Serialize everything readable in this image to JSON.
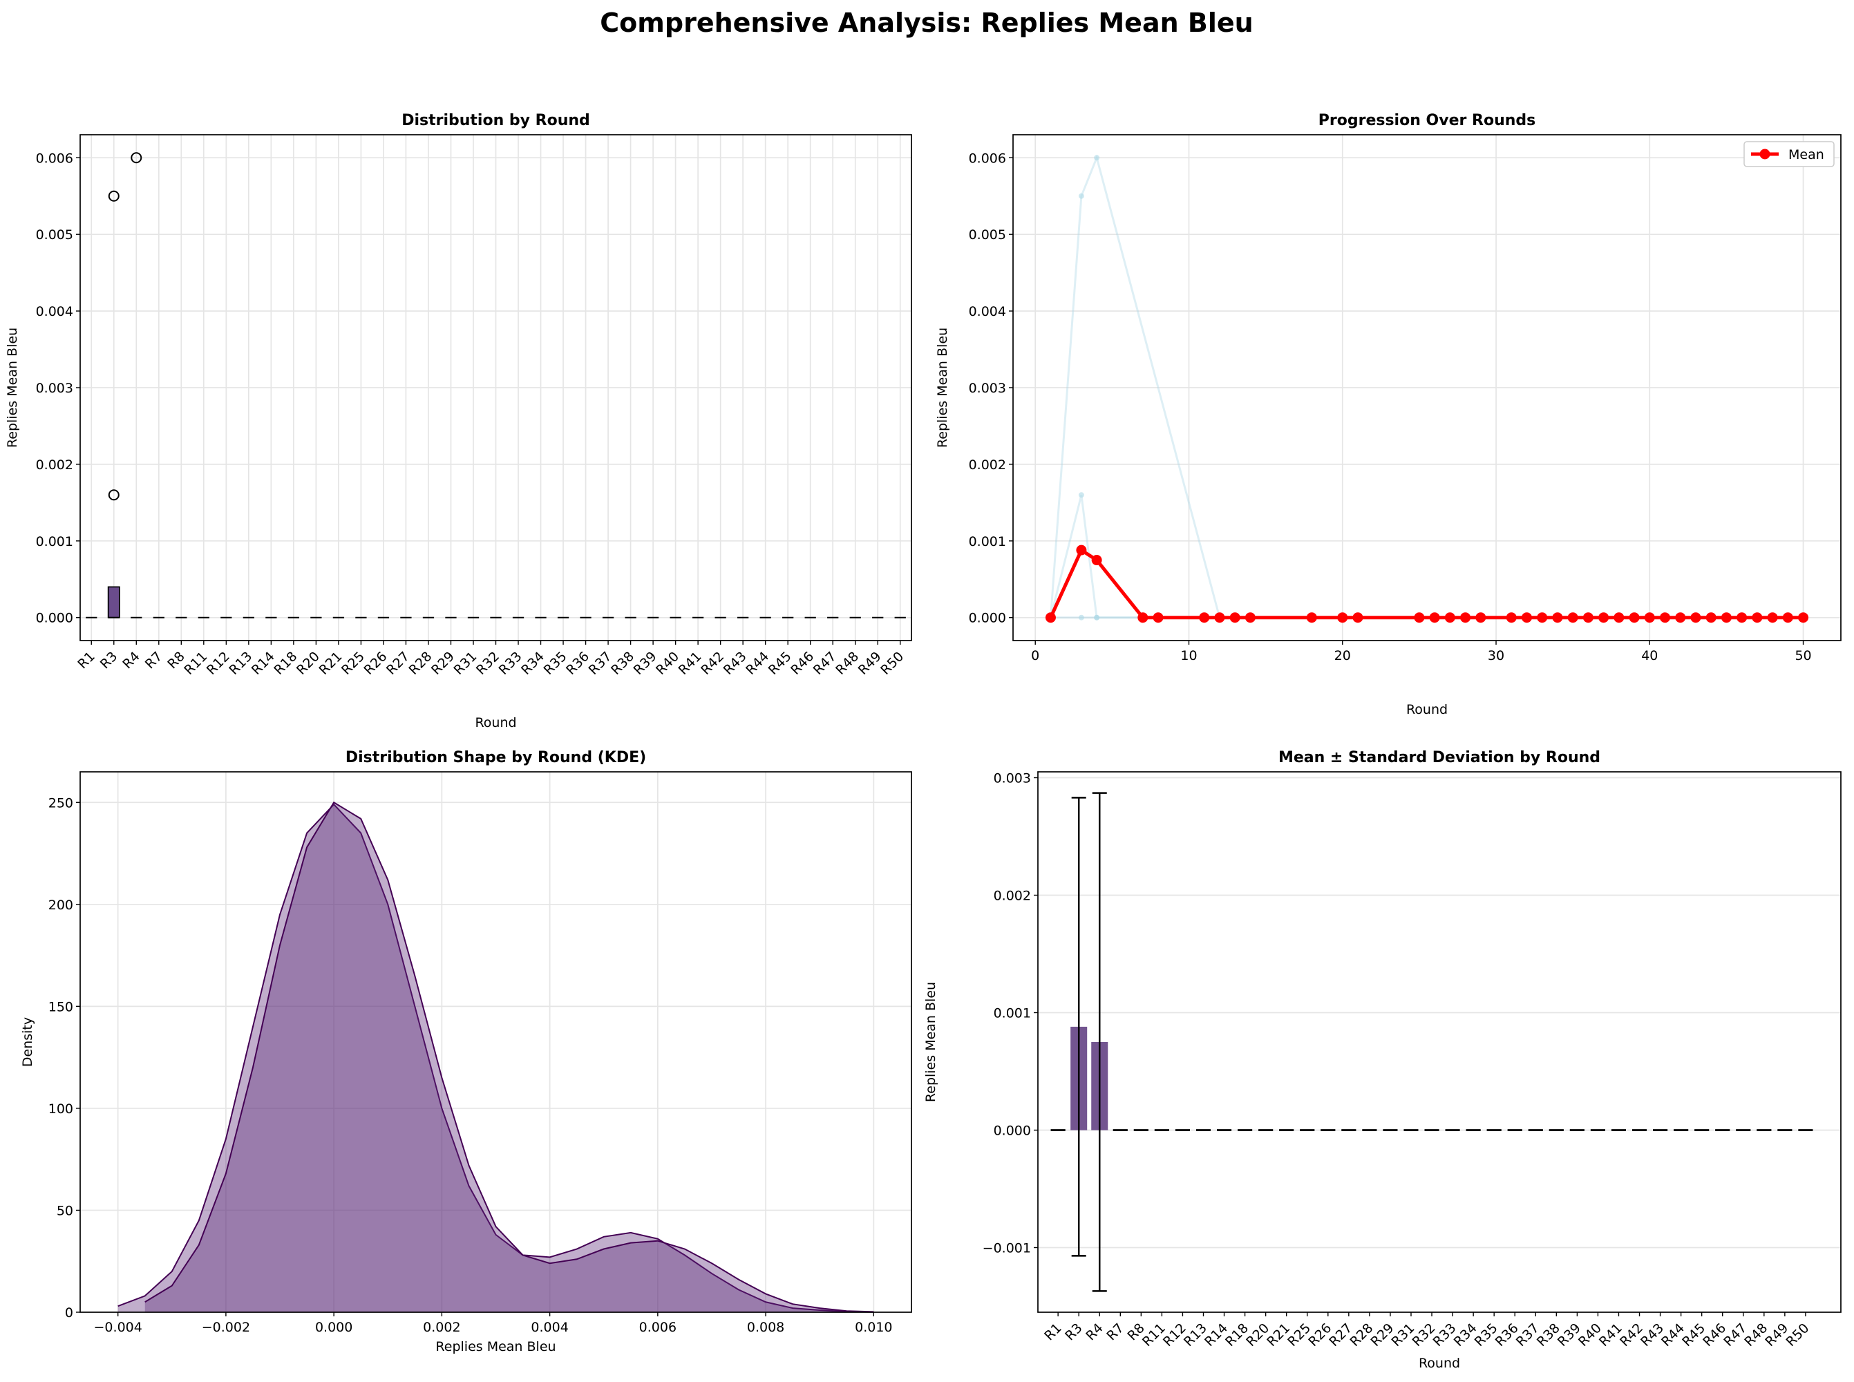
{
  "title": "Comprehensive Analysis: Replies Mean Bleu",
  "chart_data": [
    {
      "type": "box",
      "title": "Distribution by Round",
      "xlabel": "Round",
      "ylabel": "Replies Mean Bleu",
      "color": "#6a4c8c",
      "categories": [
        "R1",
        "R3",
        "R4",
        "R7",
        "R8",
        "R11",
        "R12",
        "R13",
        "R14",
        "R18",
        "R20",
        "R21",
        "R25",
        "R26",
        "R27",
        "R28",
        "R29",
        "R31",
        "R32",
        "R33",
        "R34",
        "R35",
        "R36",
        "R37",
        "R38",
        "R39",
        "R40",
        "R41",
        "R42",
        "R43",
        "R44",
        "R45",
        "R46",
        "R47",
        "R48",
        "R49",
        "R50"
      ],
      "q1": [
        0,
        0,
        0,
        0,
        0,
        0,
        0,
        0,
        0,
        0,
        0,
        0,
        0,
        0,
        0,
        0,
        0,
        0,
        0,
        0,
        0,
        0,
        0,
        0,
        0,
        0,
        0,
        0,
        0,
        0,
        0,
        0,
        0,
        0,
        0,
        0,
        0
      ],
      "median": [
        0,
        0,
        0,
        0,
        0,
        0,
        0,
        0,
        0,
        0,
        0,
        0,
        0,
        0,
        0,
        0,
        0,
        0,
        0,
        0,
        0,
        0,
        0,
        0,
        0,
        0,
        0,
        0,
        0,
        0,
        0,
        0,
        0,
        0,
        0,
        0,
        0
      ],
      "q3": [
        0,
        0.0004,
        0,
        0,
        0,
        0,
        0,
        0,
        0,
        0,
        0,
        0,
        0,
        0,
        0,
        0,
        0,
        0,
        0,
        0,
        0,
        0,
        0,
        0,
        0,
        0,
        0,
        0,
        0,
        0,
        0,
        0,
        0,
        0,
        0,
        0,
        0
      ],
      "outliers": [
        [],
        [
          0.0016,
          0.0055
        ],
        [
          0.006
        ],
        [],
        [],
        [],
        [],
        [],
        [],
        [],
        [],
        [],
        [],
        [],
        [],
        [],
        [],
        [],
        [],
        [],
        [],
        [],
        [],
        [],
        [],
        [],
        [],
        [],
        [],
        [],
        [],
        [],
        [],
        [],
        [],
        [],
        []
      ],
      "ylim": [
        -0.0003,
        0.0063
      ],
      "yticks": [
        {
          "value": 0,
          "label": "0.000"
        },
        {
          "value": 0.001,
          "label": "0.001"
        },
        {
          "value": 0.002,
          "label": "0.002"
        },
        {
          "value": 0.003,
          "label": "0.003"
        },
        {
          "value": 0.004,
          "label": "0.004"
        },
        {
          "value": 0.005,
          "label": "0.005"
        },
        {
          "value": 0.006,
          "label": "0.006"
        }
      ],
      "grid": true
    },
    {
      "type": "line",
      "title": "Progression Over Rounds",
      "xlabel": "Round",
      "ylabel": "Replies Mean Bleu",
      "x": [
        1,
        3,
        4,
        7,
        8,
        11,
        12,
        13,
        14,
        18,
        20,
        21,
        25,
        26,
        27,
        28,
        29,
        31,
        32,
        33,
        34,
        35,
        36,
        37,
        38,
        39,
        40,
        41,
        42,
        43,
        44,
        45,
        46,
        47,
        48,
        49,
        50
      ],
      "individual": [
        {
          "color": "#add8e6",
          "x": [
            1,
            3,
            4,
            12
          ],
          "values": [
            0,
            0.0055,
            0.006,
            0
          ]
        },
        {
          "color": "#add8e6",
          "x": [
            1,
            3,
            4,
            12
          ],
          "values": [
            0,
            0.0016,
            0,
            0
          ]
        },
        {
          "color": "#add8e6",
          "x": [
            1,
            3,
            4,
            12
          ],
          "values": [
            0,
            0,
            0,
            0
          ]
        }
      ],
      "series": [
        {
          "name": "Mean",
          "color": "#ff0000",
          "values": [
            0,
            0.00088,
            0.00075,
            0,
            0,
            0,
            0,
            0,
            0,
            0,
            0,
            0,
            0,
            0,
            0,
            0,
            0,
            0,
            0,
            0,
            0,
            0,
            0,
            0,
            0,
            0,
            0,
            0,
            0,
            0,
            0,
            0,
            0,
            0,
            0,
            0,
            0
          ]
        }
      ],
      "xlim": [
        -1.45,
        52.45
      ],
      "xticks": [
        0,
        10,
        20,
        30,
        40,
        50
      ],
      "ylim": [
        -0.0003,
        0.0063
      ],
      "yticks": [
        {
          "value": 0,
          "label": "0.000"
        },
        {
          "value": 0.001,
          "label": "0.001"
        },
        {
          "value": 0.002,
          "label": "0.002"
        },
        {
          "value": 0.003,
          "label": "0.003"
        },
        {
          "value": 0.004,
          "label": "0.004"
        },
        {
          "value": 0.005,
          "label": "0.005"
        },
        {
          "value": 0.006,
          "label": "0.006"
        }
      ],
      "grid": true,
      "legend": "upper right"
    },
    {
      "type": "kde",
      "title": "Distribution Shape by Round (KDE)",
      "xlabel": "Replies Mean Bleu",
      "ylabel": "Density",
      "x": [
        -0.004,
        -0.0035,
        -0.003,
        -0.0025,
        -0.002,
        -0.0015,
        -0.001,
        -0.0005,
        0,
        0.0005,
        0.001,
        0.0015,
        0.002,
        0.0025,
        0.003,
        0.0035,
        0.004,
        0.0045,
        0.005,
        0.0055,
        0.006,
        0.0065,
        0.007,
        0.0075,
        0.008,
        0.0085,
        0.009,
        0.0095,
        0.01
      ],
      "series": [
        {
          "color": "#5b2a7a",
          "values": [
            3,
            8,
            20,
            45,
            85,
            140,
            195,
            235,
            249,
            235,
            200,
            150,
            100,
            62,
            38,
            28,
            27,
            31,
            37,
            39,
            36,
            28,
            19,
            11,
            5,
            2,
            1,
            0.3,
            0.1
          ]
        },
        {
          "color": "#5b2a7a",
          "values": [
            null,
            5,
            13,
            33,
            68,
            120,
            180,
            228,
            250,
            242,
            212,
            165,
            115,
            72,
            42,
            28,
            24,
            26,
            31,
            34,
            35,
            31,
            24,
            16,
            9,
            4,
            2,
            0.6,
            0.2
          ]
        }
      ],
      "xlim": [
        -0.0047,
        0.0107
      ],
      "xticks": [
        {
          "value": -0.004,
          "label": "−0.004"
        },
        {
          "value": -0.002,
          "label": "−0.002"
        },
        {
          "value": 0,
          "label": "0.000"
        },
        {
          "value": 0.002,
          "label": "0.002"
        },
        {
          "value": 0.004,
          "label": "0.004"
        },
        {
          "value": 0.006,
          "label": "0.006"
        },
        {
          "value": 0.008,
          "label": "0.008"
        },
        {
          "value": 0.01,
          "label": "0.010"
        }
      ],
      "ylim": [
        0,
        265
      ],
      "yticks": [
        0,
        50,
        100,
        150,
        200,
        250
      ],
      "grid": true
    },
    {
      "type": "bar",
      "title": "Mean ± Standard Deviation by Round",
      "xlabel": "Round",
      "ylabel": "Replies Mean Bleu",
      "color": "#6b4c8a",
      "categories": [
        "R1",
        "R3",
        "R4",
        "R7",
        "R8",
        "R11",
        "R12",
        "R13",
        "R14",
        "R18",
        "R20",
        "R21",
        "R25",
        "R26",
        "R27",
        "R28",
        "R29",
        "R31",
        "R32",
        "R33",
        "R34",
        "R35",
        "R36",
        "R37",
        "R38",
        "R39",
        "R40",
        "R41",
        "R42",
        "R43",
        "R44",
        "R45",
        "R46",
        "R47",
        "R48",
        "R49",
        "R50"
      ],
      "values": [
        0,
        0.00088,
        0.00075,
        0,
        0,
        0,
        0,
        0,
        0,
        0,
        0,
        0,
        0,
        0,
        0,
        0,
        0,
        0,
        0,
        0,
        0,
        0,
        0,
        0,
        0,
        0,
        0,
        0,
        0,
        0,
        0,
        0,
        0,
        0,
        0,
        0,
        0
      ],
      "errors": [
        0,
        0.00195,
        0.00212,
        0,
        0,
        0,
        0,
        0,
        0,
        0,
        0,
        0,
        0,
        0,
        0,
        0,
        0,
        0,
        0,
        0,
        0,
        0,
        0,
        0,
        0,
        0,
        0,
        0,
        0,
        0,
        0,
        0,
        0,
        0,
        0,
        0,
        0
      ],
      "ylim": [
        -0.00155,
        0.00305
      ],
      "yticks": [
        {
          "value": -0.001,
          "label": "−0.001"
        },
        {
          "value": 0,
          "label": "0.000"
        },
        {
          "value": 0.001,
          "label": "0.001"
        },
        {
          "value": 0.002,
          "label": "0.002"
        },
        {
          "value": 0.003,
          "label": "0.003"
        }
      ],
      "grid": true
    }
  ]
}
